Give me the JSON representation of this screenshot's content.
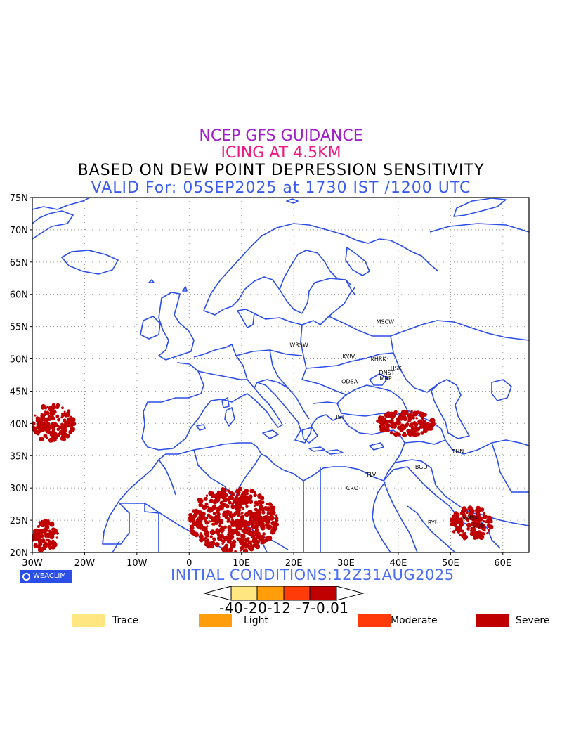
{
  "titles": {
    "line1": "NCEP GFS GUIDANCE",
    "line2": "ICING AT 4.5KM",
    "line3": "BASED ON DEW POINT DEPRESSION SENSITIVITY",
    "line4": "VALID For: 05SEP2025 at 1730 IST /1200 UTC"
  },
  "colors": {
    "line1": "#a020c8",
    "line2": "#ee1a82",
    "line3": "#000000",
    "line4": "#3a5bf0",
    "coast": "#2b4ee8",
    "severe": "#c00000",
    "moderate": "#ff3b0a",
    "light": "#ff9e0a",
    "trace": "#ffe680"
  },
  "map": {
    "lat_ticks": [
      "75N",
      "70N",
      "65N",
      "60N",
      "55N",
      "50N",
      "45N",
      "40N",
      "35N",
      "30N",
      "25N",
      "20N"
    ],
    "lon_ticks": [
      "30W",
      "20W",
      "10W",
      "0",
      "10E",
      "20E",
      "30E",
      "40E",
      "50E",
      "60E"
    ],
    "lon_range": [
      -30,
      65
    ],
    "lat_range": [
      20,
      75
    ],
    "stations": [
      {
        "name": "MSCW",
        "lon": 37.5,
        "lat": 55.8
      },
      {
        "name": "WRSW",
        "lon": 21.0,
        "lat": 52.2
      },
      {
        "name": "KYIV",
        "lon": 30.5,
        "lat": 50.4
      },
      {
        "name": "KHRK",
        "lon": 36.2,
        "lat": 50.0
      },
      {
        "name": "LHSK",
        "lon": 39.3,
        "lat": 48.6
      },
      {
        "name": "DNST",
        "lon": 37.8,
        "lat": 47.9
      },
      {
        "name": "MRP",
        "lon": 37.6,
        "lat": 47.0
      },
      {
        "name": "ODSA",
        "lon": 30.7,
        "lat": 46.5
      },
      {
        "name": "IST",
        "lon": 28.9,
        "lat": 41.0
      },
      {
        "name": "THN",
        "lon": 51.4,
        "lat": 35.7
      },
      {
        "name": "BGD",
        "lon": 44.4,
        "lat": 33.3
      },
      {
        "name": "TLV",
        "lon": 34.8,
        "lat": 32.1
      },
      {
        "name": "CRO",
        "lon": 31.2,
        "lat": 30.0
      },
      {
        "name": "MUSK",
        "lon": 53.8,
        "lat": 25.4
      },
      {
        "name": "DUB",
        "lon": 55.3,
        "lat": 24.2
      },
      {
        "name": "RYH",
        "lon": 46.7,
        "lat": 24.7
      }
    ]
  },
  "icing_areas": [
    {
      "severity": "severe",
      "region": "Atlantic west of Portugal",
      "lon": [
        -30,
        -22
      ],
      "lat": [
        37,
        43
      ]
    },
    {
      "severity": "severe",
      "region": "Atlantic southwest",
      "lon": [
        -30,
        -25
      ],
      "lat": [
        20,
        25
      ]
    },
    {
      "severity": "severe",
      "region": "Central Sahara",
      "lon": [
        0,
        17
      ],
      "lat": [
        20,
        30
      ]
    },
    {
      "severity": "severe",
      "region": "Eastern Turkey / Caucasus",
      "lon": [
        36,
        47
      ],
      "lat": [
        38,
        42
      ]
    },
    {
      "severity": "severe",
      "region": "Arabian Gulf / Oman",
      "lon": [
        50,
        58
      ],
      "lat": [
        22,
        27
      ]
    }
  ],
  "footer": {
    "brand": "WEACLIM",
    "initial_conditions": "INITIAL CONDITIONS:12Z31AUG2025",
    "colorbar_labels": "-40-20-12 -7-0.01"
  },
  "legend": [
    {
      "label": "Trace",
      "color": "#ffe680"
    },
    {
      "label": "Light",
      "color": "#ff9e0a"
    },
    {
      "label": "Moderate",
      "color": "#ff3b0a"
    },
    {
      "label": "Severe",
      "color": "#c00000"
    }
  ]
}
